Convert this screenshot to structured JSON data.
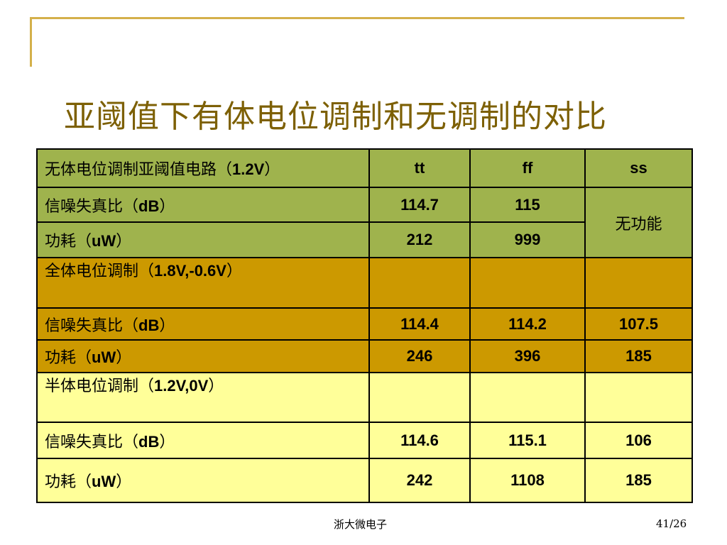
{
  "title": "亚阈值下有体电位调制和无调制的对比",
  "table": {
    "header": {
      "label_cn": "无体电位调制亚阈值电路（",
      "label_v": "1.2V",
      "label_close": "）",
      "cols": [
        "tt",
        "ff",
        "ss"
      ]
    },
    "groups": [
      {
        "label_cn": "全体电位调制（",
        "label_v": "1.8V,-0.6V",
        "label_close": "）",
        "snr": {
          "prefix": "信噪失真比（",
          "unit": "dB",
          "suffix": "）",
          "values": [
            "114.4",
            "114.2",
            "107.5"
          ]
        },
        "power": {
          "prefix": "功耗（",
          "unit": "uW",
          "suffix": "）",
          "values": [
            "246",
            "396",
            "185"
          ]
        }
      },
      {
        "label_cn": "半体电位调制（",
        "label_v": "1.2V,0V",
        "label_close": "）",
        "snr": {
          "prefix": "信噪失真比（",
          "unit": "dB",
          "suffix": "）",
          "values": [
            "114.6",
            "115.1",
            "106"
          ]
        },
        "power": {
          "prefix": "功耗（",
          "unit": "uW",
          "suffix": "）",
          "values": [
            "242",
            "1108",
            "185"
          ]
        }
      }
    ],
    "baseline": {
      "snr": {
        "prefix": "信噪失真比（",
        "unit": "dB",
        "suffix": "）",
        "values": [
          "114.7",
          "115"
        ]
      },
      "power": {
        "prefix": "功耗（",
        "unit": "uW",
        "suffix": "）",
        "values": [
          "212",
          "999"
        ]
      },
      "ss_merged": "无功能"
    }
  },
  "footer": {
    "org": "浙大微电子",
    "page": "41/26"
  },
  "colors": {
    "green": "#9fb34d",
    "orange": "#cc9900",
    "yellow": "#ffff99",
    "title": "#7d6004",
    "frame": "#d4b04a"
  }
}
